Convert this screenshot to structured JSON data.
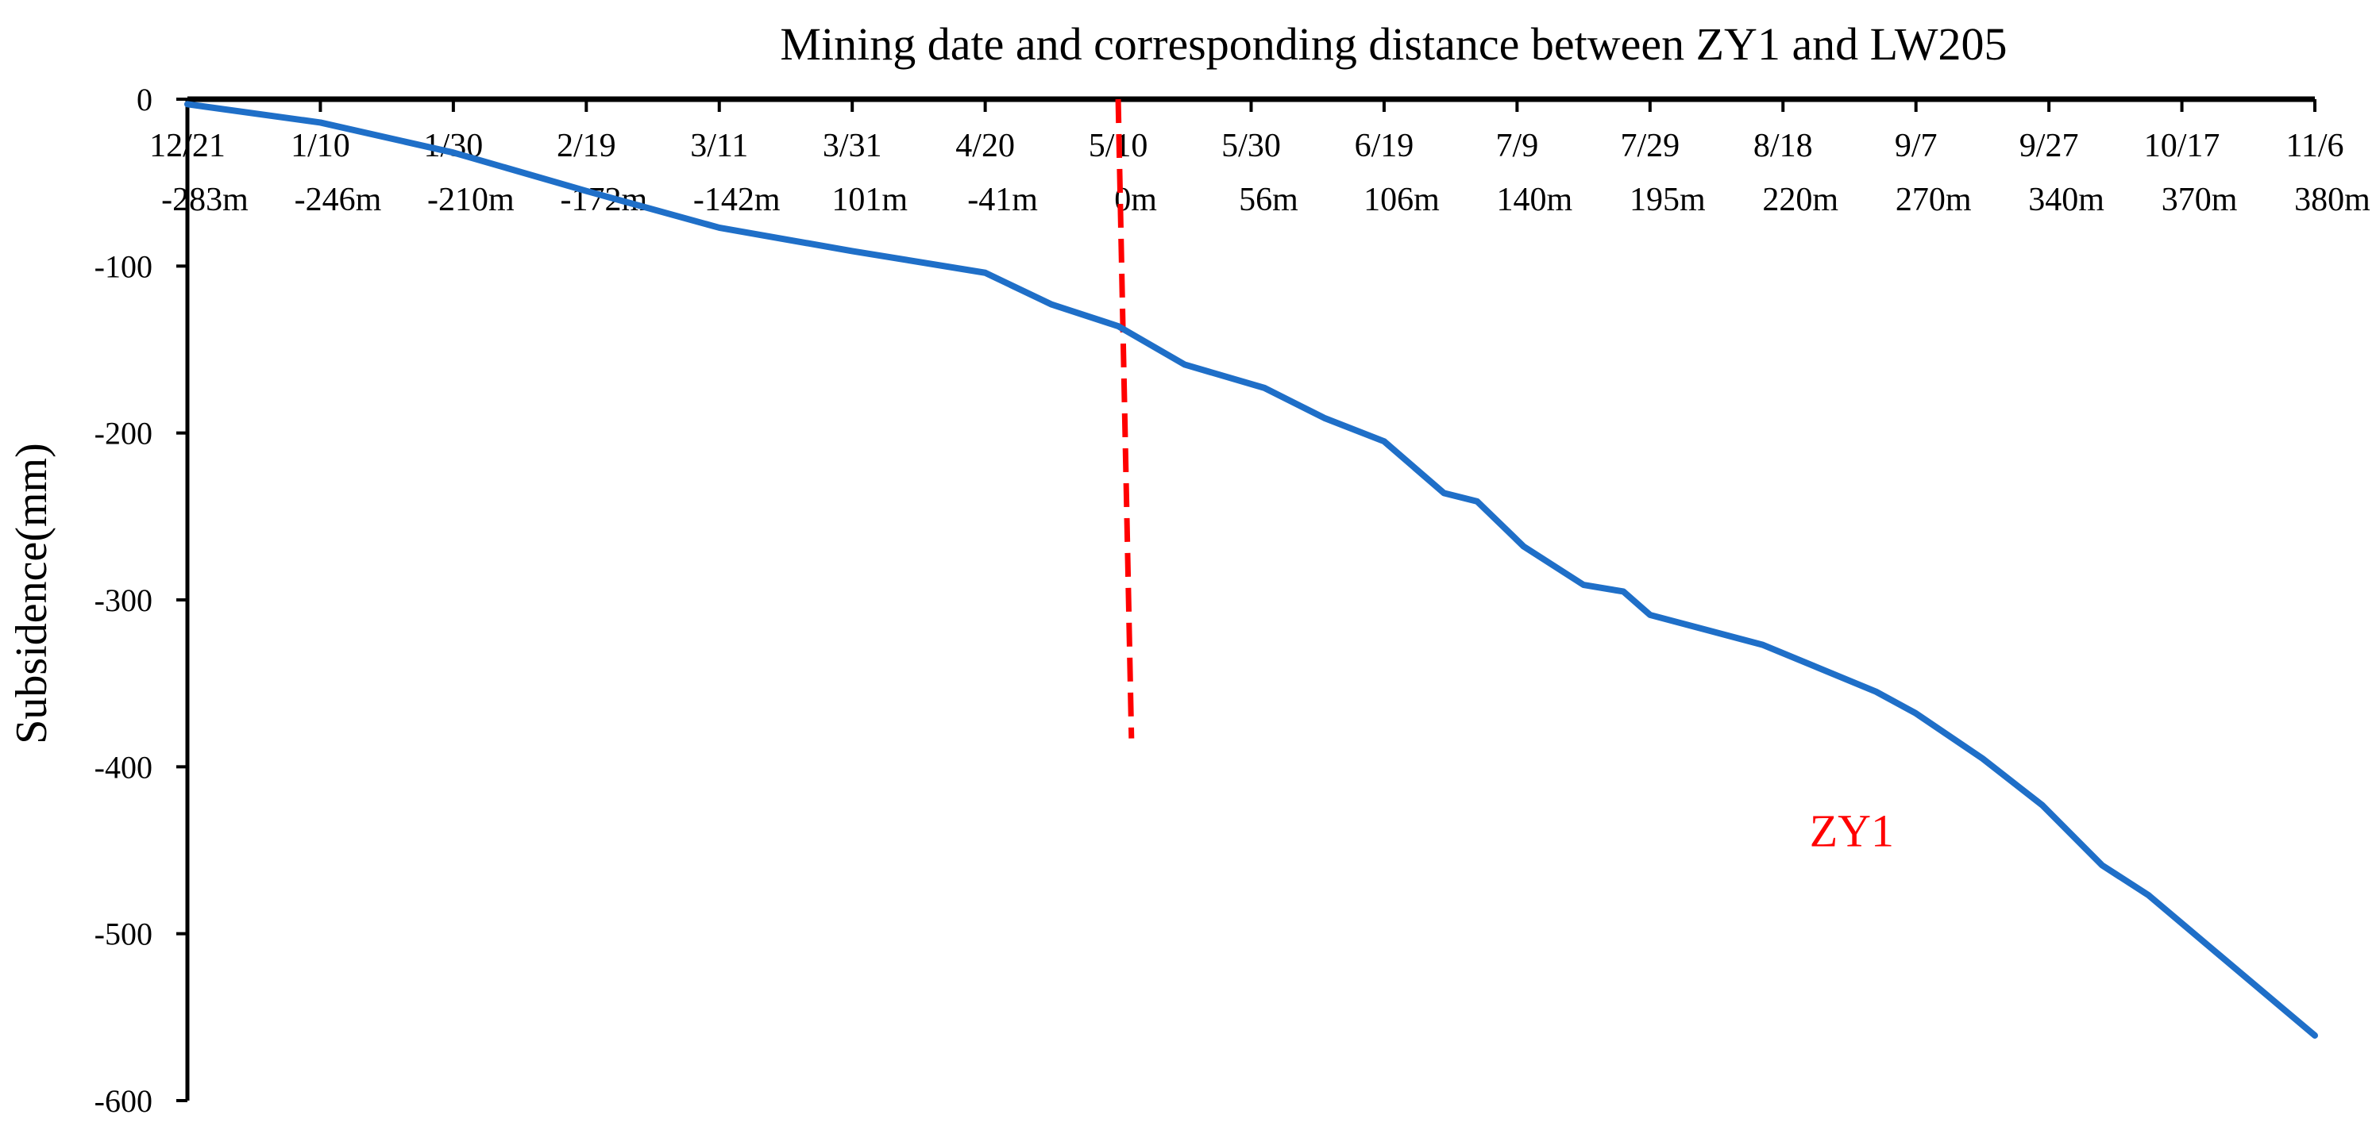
{
  "chart_data": {
    "type": "line",
    "title": "Mining date and corresponding distance between ZY1 and LW205",
    "ylabel": "Subsidence(mm)",
    "xlabel": "",
    "xlim": [
      0,
      320
    ],
    "ylim": [
      -600,
      0
    ],
    "yticks": [
      0,
      -100,
      -200,
      -300,
      -400,
      -500,
      -600
    ],
    "x_tick_days": [
      0,
      20,
      40,
      60,
      80,
      100,
      120,
      140,
      160,
      180,
      200,
      220,
      240,
      260,
      280,
      300,
      320
    ],
    "date_labels": [
      "12/21",
      "1/10",
      "1/30",
      "2/19",
      "3/11",
      "3/31",
      "4/20",
      "5/10",
      "5/30",
      "6/19",
      "7/9",
      "7/29",
      "8/18",
      "9/7",
      "9/27",
      "10/17",
      "11/6"
    ],
    "distance_labels": [
      "-283m",
      "-246m",
      "-210m",
      "-172m",
      "-142m",
      "101m",
      "-41m",
      "0m",
      "56m",
      "106m",
      "140m",
      "195m",
      "220m",
      "270m",
      "340m",
      "370m",
      "380m"
    ],
    "series": [
      {
        "name": "ZY1",
        "color": "#1f6fc8",
        "x": [
          0,
          20,
          40,
          60,
          80,
          100,
          120,
          130,
          140,
          150,
          162,
          171,
          180,
          189,
          194,
          201,
          210,
          216,
          220,
          237,
          254,
          260,
          270,
          279,
          288,
          295,
          306,
          320
        ],
        "y": [
          -3,
          -14,
          -32,
          -55,
          -77,
          -91,
          -104,
          -123,
          -136,
          -159,
          -173,
          -191,
          -205,
          -236,
          -241,
          -268,
          -291,
          -295,
          -309,
          -327,
          -355,
          -368,
          -395,
          -423,
          -459,
          -477,
          -514,
          -561
        ]
      }
    ],
    "marker_line": {
      "color": "#ff0000",
      "x": [
        140,
        142
      ],
      "y": [
        0,
        -383
      ]
    },
    "annotation": {
      "text": "ZY1",
      "x": 244,
      "y": -438,
      "color": "#ff0000"
    }
  }
}
